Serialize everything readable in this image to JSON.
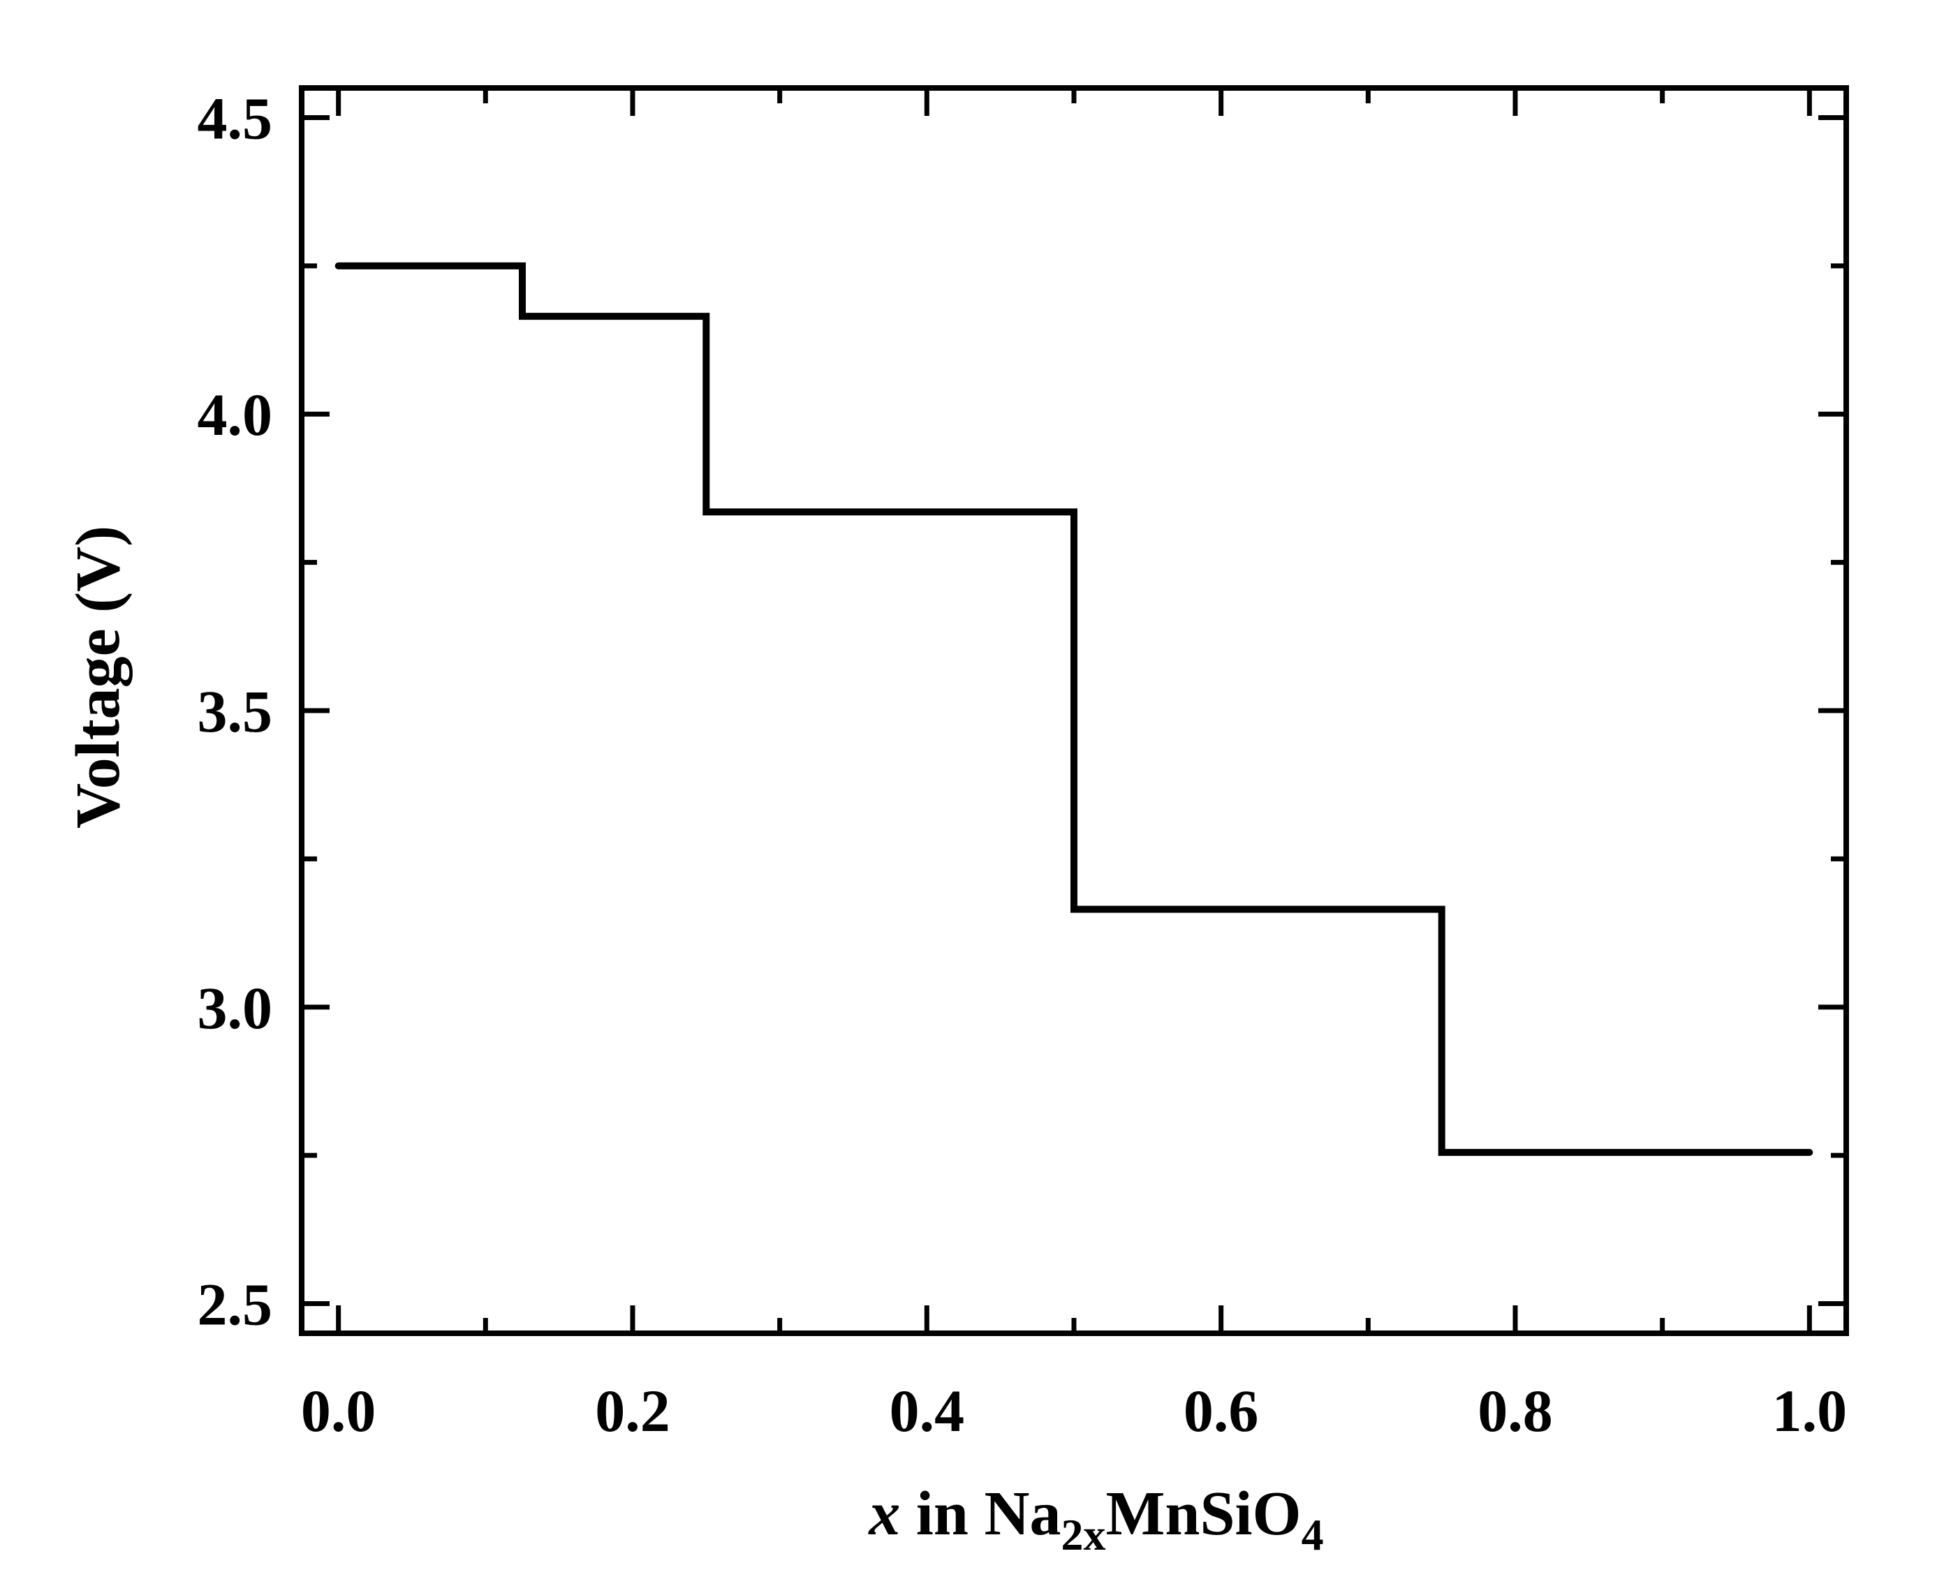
{
  "chart_data": {
    "type": "line",
    "step": true,
    "title": "",
    "xlabel": {
      "var": "x",
      "in_word": " in ",
      "formula_base": "Na",
      "formula_sub1": "2x",
      "formula_mid": "MnSiO",
      "formula_sub2": "4"
    },
    "ylabel": "Voltage (V)",
    "xlim": [
      -0.025,
      1.025
    ],
    "ylim": [
      2.45,
      4.55
    ],
    "x_ticks": [
      0.0,
      0.2,
      0.4,
      0.6,
      0.8,
      1.0
    ],
    "x_tick_labels": [
      "0.0",
      "0.2",
      "0.4",
      "0.6",
      "0.8",
      "1.0"
    ],
    "x_minor_ticks": [
      0.1,
      0.3,
      0.5,
      0.7,
      0.9
    ],
    "y_ticks": [
      2.5,
      3.0,
      3.5,
      4.0,
      4.5
    ],
    "y_tick_labels": [
      "2.5",
      "3.0",
      "3.5",
      "4.0",
      "4.5"
    ],
    "y_minor_ticks": [
      2.75,
      3.25,
      3.75,
      4.25
    ],
    "grid": false,
    "legend": "none",
    "line_color": "#000000",
    "series": [
      {
        "x": [
          0.0,
          0.125,
          0.125,
          0.25,
          0.25,
          0.5,
          0.5,
          0.75,
          0.75,
          1.0
        ],
        "y": [
          4.25,
          4.25,
          4.165,
          4.165,
          3.835,
          3.835,
          3.165,
          3.165,
          2.755,
          2.755
        ]
      }
    ]
  }
}
